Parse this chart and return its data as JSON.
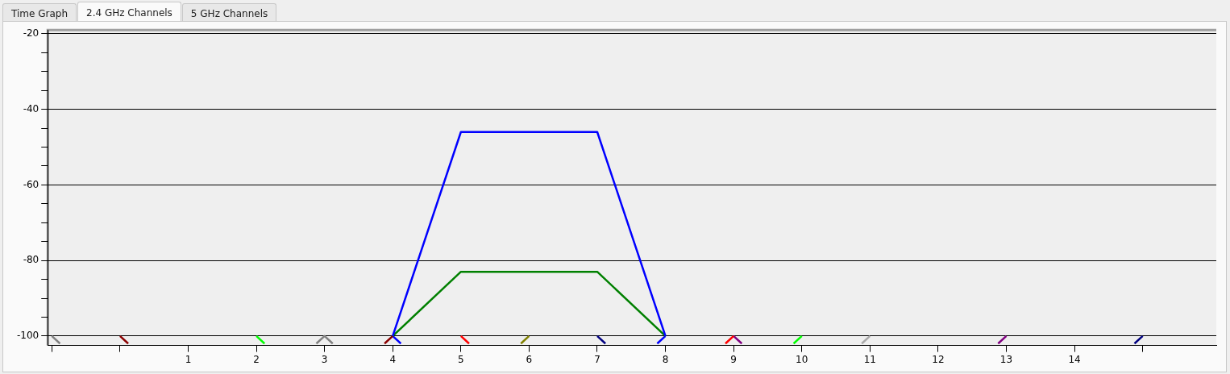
{
  "chart_data": {
    "type": "line",
    "annotations": [
      "Time Graph",
      "2.4 GHz Channels",
      "5 GHz Channels"
    ],
    "xlim": [
      -1.06,
      16.08
    ],
    "ylim": [
      -102.5,
      -19
    ],
    "xticks": [
      {
        "value": -1,
        "label": null
      },
      {
        "value": 0,
        "label": null
      },
      1,
      2,
      3,
      4,
      5,
      6,
      7,
      8,
      9,
      10,
      11,
      12,
      13,
      14,
      {
        "value": 15,
        "label": null
      }
    ],
    "yticks": [
      -100,
      {
        "value": -95,
        "label": null
      },
      {
        "value": -90,
        "label": null
      },
      {
        "value": -85,
        "label": null
      },
      -80,
      {
        "value": -75,
        "label": null
      },
      {
        "value": -70,
        "label": null
      },
      {
        "value": -65,
        "label": null
      },
      -60,
      {
        "value": -55,
        "label": null
      },
      {
        "value": -50,
        "label": null
      },
      {
        "value": -45,
        "label": null
      },
      -40,
      {
        "value": -35,
        "label": null
      },
      {
        "value": -30,
        "label": null
      },
      {
        "value": -25,
        "label": null
      },
      -20
    ],
    "grid": "y",
    "legend": false,
    "marker": "none",
    "line_style": "solid",
    "series": [
      {
        "color": "#0000ff",
        "x": [
          4,
          5,
          7,
          8
        ],
        "values": [
          -100,
          -46,
          -46,
          -100
        ]
      },
      {
        "color": "#008000",
        "x": [
          4,
          5,
          7,
          8
        ],
        "values": [
          -100,
          -83,
          -83,
          -100
        ]
      },
      {
        "color": "#808080",
        "x": [
          -1,
          -0.88
        ],
        "values": [
          -100,
          -102
        ]
      },
      {
        "color": "#8b0000",
        "x": [
          0,
          0.12
        ],
        "values": [
          -100,
          -102
        ]
      },
      {
        "color": "#00ff00",
        "x": [
          2,
          2.12
        ],
        "values": [
          -100,
          -102
        ]
      },
      {
        "color": "#808080",
        "x": [
          2.88,
          3,
          3.12
        ],
        "values": [
          -102,
          -100,
          -102
        ]
      },
      {
        "color": "#8b0000",
        "x": [
          3.88,
          4
        ],
        "values": [
          -102,
          -100
        ]
      },
      {
        "color": "#0000ff",
        "x": [
          4,
          4.12
        ],
        "values": [
          -100,
          -102
        ]
      },
      {
        "color": "#ff0000",
        "x": [
          5,
          5.12
        ],
        "values": [
          -100,
          -102
        ]
      },
      {
        "color": "#808000",
        "x": [
          5.88,
          6
        ],
        "values": [
          -102,
          -100
        ]
      },
      {
        "color": "#000080",
        "x": [
          7,
          7.12
        ],
        "values": [
          -100,
          -102
        ]
      },
      {
        "color": "#0000ff",
        "x": [
          7.88,
          8
        ],
        "values": [
          -102,
          -100
        ]
      },
      {
        "color": "#ff0000",
        "x": [
          8.88,
          9
        ],
        "values": [
          -102,
          -100
        ]
      },
      {
        "color": "#800080",
        "x": [
          9,
          9.12
        ],
        "values": [
          -100,
          -102
        ]
      },
      {
        "color": "#00ff00",
        "x": [
          9.88,
          10
        ],
        "values": [
          -102,
          -100
        ]
      },
      {
        "color": "#a9a9a9",
        "x": [
          10.88,
          11
        ],
        "values": [
          -102,
          -100
        ]
      },
      {
        "color": "#800080",
        "x": [
          12.88,
          13
        ],
        "values": [
          -102,
          -100
        ]
      },
      {
        "color": "#000080",
        "x": [
          14.88,
          15
        ],
        "values": [
          -102,
          -100
        ]
      }
    ]
  }
}
